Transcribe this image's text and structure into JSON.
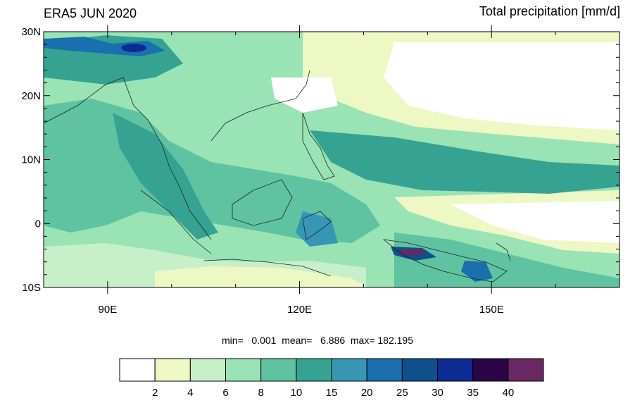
{
  "title_left": "ERA5 JUN 2020",
  "title_right": "Total precipitation [mm/d]",
  "stats": {
    "text": "min=   0.001  mean=   6.886  max= 182.195"
  },
  "map": {
    "lon_range": [
      80,
      170
    ],
    "lat_range": [
      -10,
      30
    ],
    "lat_labels": [
      "30N",
      "20N",
      "10N",
      "0",
      "10S"
    ],
    "lat_values": [
      30,
      20,
      10,
      0,
      -10
    ],
    "lon_labels": [
      "90E",
      "120E",
      "150E"
    ],
    "lon_values": [
      90,
      120,
      150
    ]
  },
  "colorbar": {
    "colors": [
      "#ffffff",
      "#edf8c4",
      "#c8f0c8",
      "#99e3b4",
      "#5fc2a1",
      "#36a392",
      "#3896b5",
      "#1a6fae",
      "#0f4f8c",
      "#0d2b93",
      "#2a0548",
      "#6a2862"
    ],
    "labels": [
      "2",
      "4",
      "6",
      "8",
      "10",
      "15",
      "20",
      "25",
      "30",
      "35",
      "40"
    ]
  }
}
